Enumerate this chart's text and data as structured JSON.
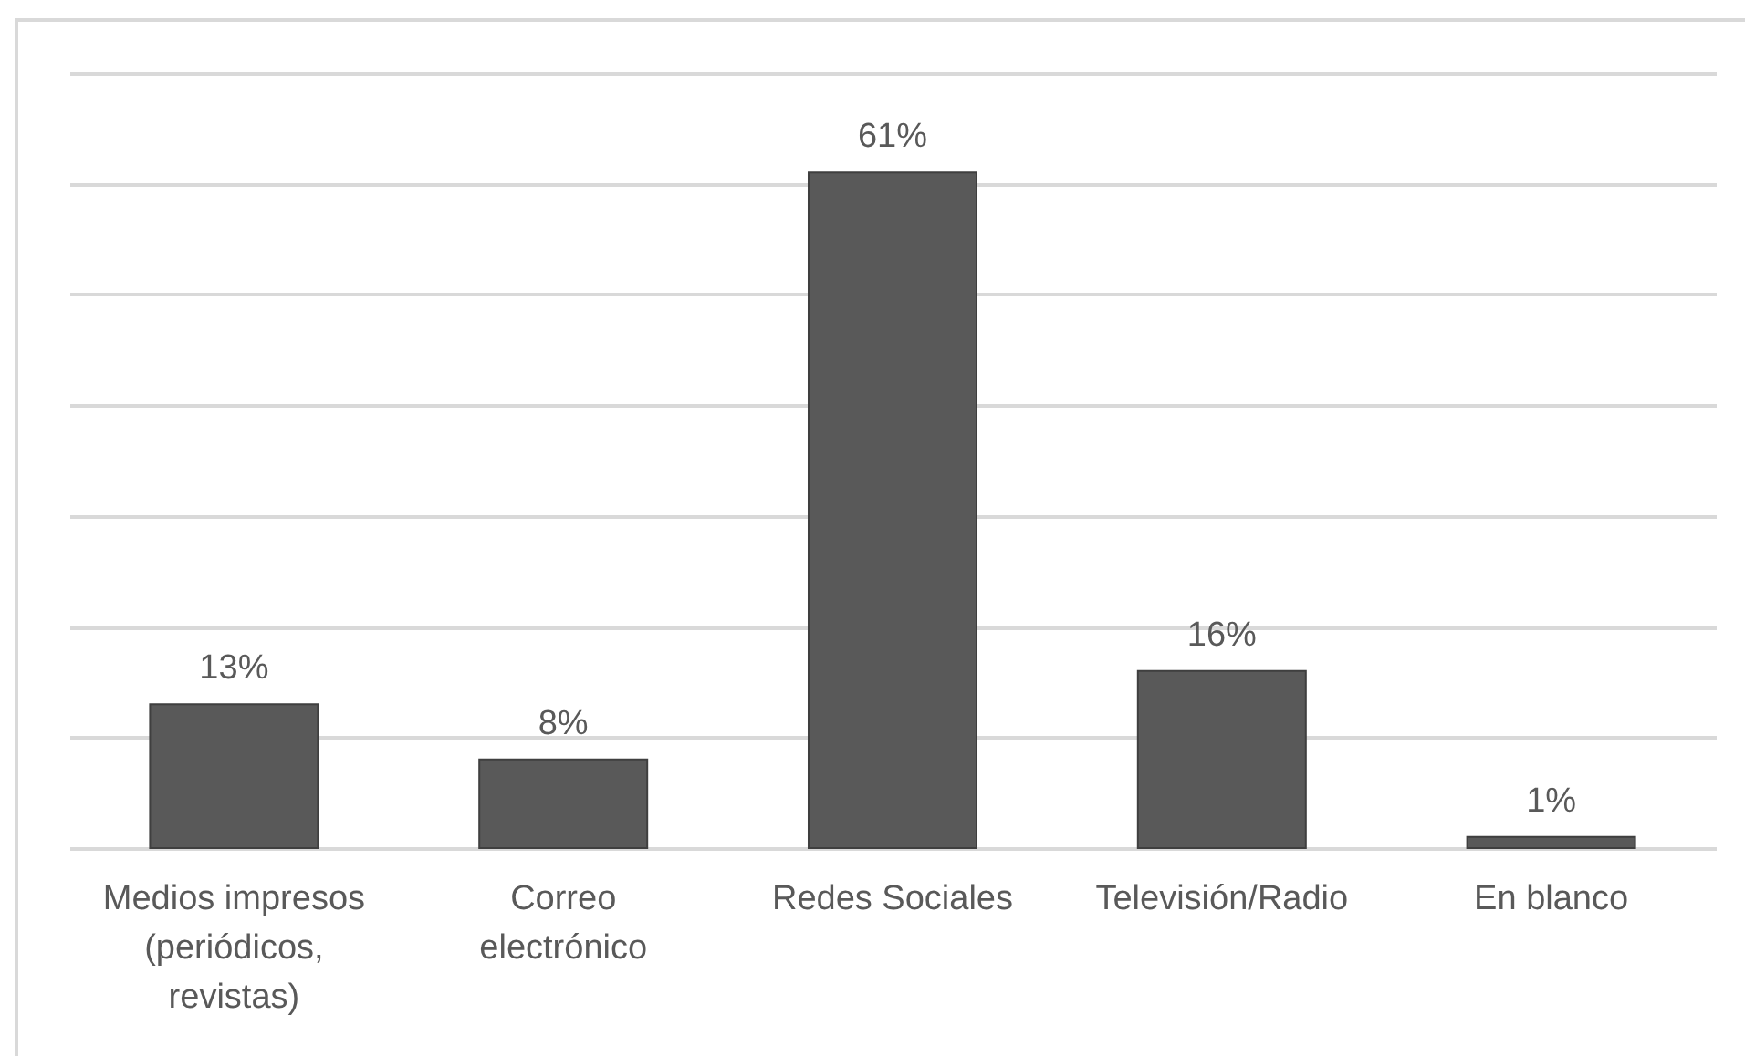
{
  "chart_data": {
    "type": "bar",
    "categories": [
      "Medios impresos (periódicos, revistas)",
      "Correo electrónico",
      "Redes Sociales",
      "Televisión/Radio",
      "En blanco"
    ],
    "values": [
      13,
      8,
      61,
      16,
      1
    ],
    "value_labels": [
      "13%",
      "8%",
      "61%",
      "16%",
      "1%"
    ],
    "color": "#595959",
    "ylim": [
      0,
      70
    ],
    "yticks": [
      {
        "value": 0,
        "label": null
      },
      {
        "value": 10,
        "label": null
      },
      {
        "value": 20,
        "label": null
      },
      {
        "value": 30,
        "label": null
      },
      {
        "value": 40,
        "label": null
      },
      {
        "value": 50,
        "label": null
      },
      {
        "value": 60,
        "label": null
      },
      {
        "value": 70,
        "label": null
      }
    ],
    "grid": "y",
    "tick_labels": "x"
  }
}
